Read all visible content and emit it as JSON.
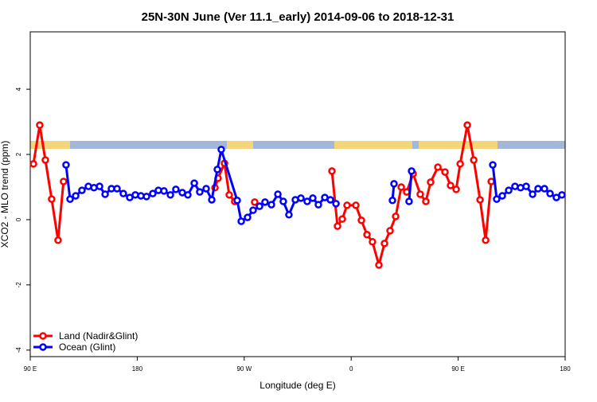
{
  "chart_data": {
    "type": "line",
    "title": "25N-30N June (Ver 11.1_early)   2014-09-06 to 2018-12-31",
    "x_label": "Longitude (deg E)",
    "y_label": "XCO2 - MLO trend (ppm)",
    "xlim": [
      90,
      540
    ],
    "xticks": [
      {
        "value": 90,
        "label": "90 E"
      },
      {
        "value": 180,
        "label": "180"
      },
      {
        "value": 270,
        "label": "90 W"
      },
      {
        "value": 360,
        "label": "0"
      },
      {
        "value": 450,
        "label": "90 E"
      },
      {
        "value": 540,
        "label": "180"
      }
    ],
    "ylim": [
      -4.2,
      5.76
    ],
    "yticks": [
      -4,
      -2,
      0,
      2,
      4
    ],
    "legend": "bottom-left",
    "series": [
      {
        "name": "Land (Nadir&Glint)",
        "color": "#ff0000",
        "x": [
          92.7,
          98,
          102.7,
          108,
          113.4,
          118,
          null,
          245.4,
          248,
          253.4,
          257.4,
          262,
          null,
          278.8,
          null,
          343.8,
          348.5,
          352.5,
          356.5,
          363.9,
          368.6,
          373.3,
          377.9,
          383.3,
          388,
          392.7,
          397.4,
          402.1,
          406.7,
          412.1,
          418.1,
          422.8,
          426.8,
          432.9,
          438.9,
          443.6,
          448.3,
          451.7,
          457.7,
          463.1,
          468.4,
          473.1,
          477.8
        ],
        "values": [
          1.71,
          2.9,
          1.83,
          0.63,
          -0.63,
          1.17,
          null,
          0.98,
          1.27,
          1.73,
          0.76,
          0.56,
          null,
          0.54,
          null,
          1.49,
          -0.2,
          0.02,
          0.44,
          0.44,
          -0.02,
          -0.46,
          -0.68,
          -1.39,
          -0.73,
          -0.34,
          0.1,
          1.0,
          0.85,
          1.41,
          0.78,
          0.56,
          1.15,
          1.61,
          1.46,
          1.05,
          0.93,
          1.71,
          2.9,
          1.83,
          0.61,
          -0.63,
          1.17
        ]
      },
      {
        "name": "Ocean (Glint)",
        "color": "#0000ff",
        "x": [
          120.1,
          123.5,
          128.2,
          133.5,
          138.9,
          143.6,
          148.3,
          153,
          158.3,
          163,
          168.3,
          173.7,
          178.4,
          183.1,
          187.8,
          193.1,
          197.8,
          202.5,
          207.9,
          212.5,
          217.9,
          222.6,
          228,
          232.6,
          238,
          242.7,
          247.4,
          250.7,
          264.1,
          267.5,
          272.8,
          277.5,
          282.9,
          287.5,
          292.9,
          298.3,
          302.9,
          307.6,
          313,
          317.7,
          323,
          327.7,
          332.4,
          337.8,
          342.5,
          347.2,
          null,
          394.7,
          396,
          null,
          408.7,
          410.8,
          null,
          479.1,
          482.4,
          487.1,
          492.5,
          497.8,
          502.5,
          507.2,
          512.6,
          517.2,
          522.6,
          527.3,
          532.6,
          537.3
        ],
        "values": [
          1.68,
          0.63,
          0.73,
          0.9,
          1.02,
          0.98,
          1.02,
          0.78,
          0.95,
          0.95,
          0.8,
          0.68,
          0.76,
          0.73,
          0.71,
          0.8,
          0.9,
          0.88,
          0.76,
          0.93,
          0.83,
          0.76,
          1.12,
          0.85,
          0.95,
          0.61,
          1.54,
          2.15,
          0.59,
          -0.05,
          0.07,
          0.29,
          0.41,
          0.54,
          0.46,
          0.78,
          0.56,
          0.15,
          0.61,
          0.66,
          0.56,
          0.66,
          0.46,
          0.68,
          0.61,
          0.49,
          null,
          0.59,
          1.1,
          null,
          0.56,
          1.49,
          null,
          1.68,
          0.63,
          0.73,
          0.9,
          1.02,
          0.98,
          1.02,
          0.78,
          0.95,
          0.95,
          0.8,
          0.68,
          0.76
        ]
      }
    ]
  }
}
